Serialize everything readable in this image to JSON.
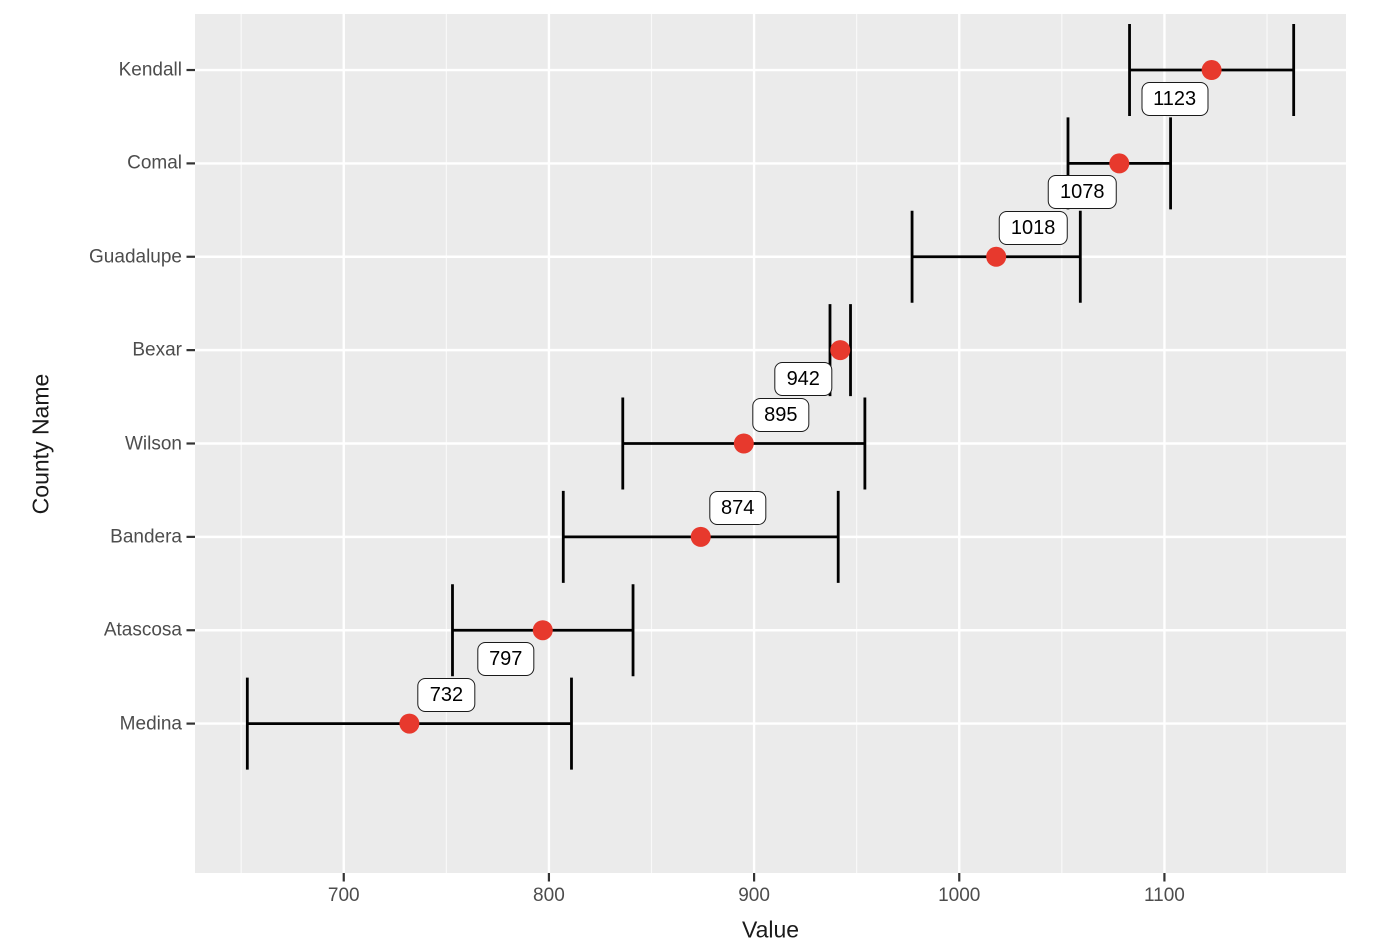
{
  "figure": {
    "background_color": "#FFFFFF",
    "panel_background_color": "#EBEBEB",
    "grid_major_color": "#FFFFFF",
    "grid_minor_color": "#FFFFFF",
    "errorbar_color": "#000000",
    "point_color": "#E7392D",
    "tick_mark_color": "#333333",
    "axis_text_color": "#4D4D4D",
    "axis_title_color": "#1A1A1A",
    "label_box_fill": "#FFFFFF",
    "label_box_border": "#1A1A1A"
  },
  "chart_data": {
    "type": "scatter",
    "subtype": "pointrange-errorbar-horizontal",
    "title": "",
    "xlabel": "Value",
    "ylabel": "County Name",
    "xlim": [
      627.5,
      1188.5
    ],
    "x_major_ticks": [
      700,
      800,
      900,
      1000,
      1100
    ],
    "x_minor_ticks": [
      650,
      750,
      850,
      950,
      1050,
      1150
    ],
    "grid": true,
    "legend": "none",
    "categories_top_to_bottom": [
      "Kendall",
      "Comal",
      "Guadalupe",
      "Bexar",
      "Wilson",
      "Bandera",
      "Atascosa",
      "Medina"
    ],
    "points": [
      {
        "county": "Kendall",
        "value": 1123,
        "lower": 1083,
        "upper": 1163,
        "label": "1123",
        "label_side": "below-left"
      },
      {
        "county": "Comal",
        "value": 1078,
        "lower": 1053,
        "upper": 1103,
        "label": "1078",
        "label_side": "below-left"
      },
      {
        "county": "Guadalupe",
        "value": 1018,
        "lower": 977,
        "upper": 1059,
        "label": "1018",
        "label_side": "above-right"
      },
      {
        "county": "Bexar",
        "value": 942,
        "lower": 937,
        "upper": 947,
        "label": "942",
        "label_side": "below-left"
      },
      {
        "county": "Wilson",
        "value": 895,
        "lower": 836,
        "upper": 954,
        "label": "895",
        "label_side": "above-right"
      },
      {
        "county": "Bandera",
        "value": 874,
        "lower": 807,
        "upper": 941,
        "label": "874",
        "label_side": "above-right"
      },
      {
        "county": "Atascosa",
        "value": 797,
        "lower": 753,
        "upper": 841,
        "label": "797",
        "label_side": "below-left"
      },
      {
        "county": "Medina",
        "value": 732,
        "lower": 653,
        "upper": 811,
        "label": "732",
        "label_side": "above-right"
      }
    ]
  }
}
